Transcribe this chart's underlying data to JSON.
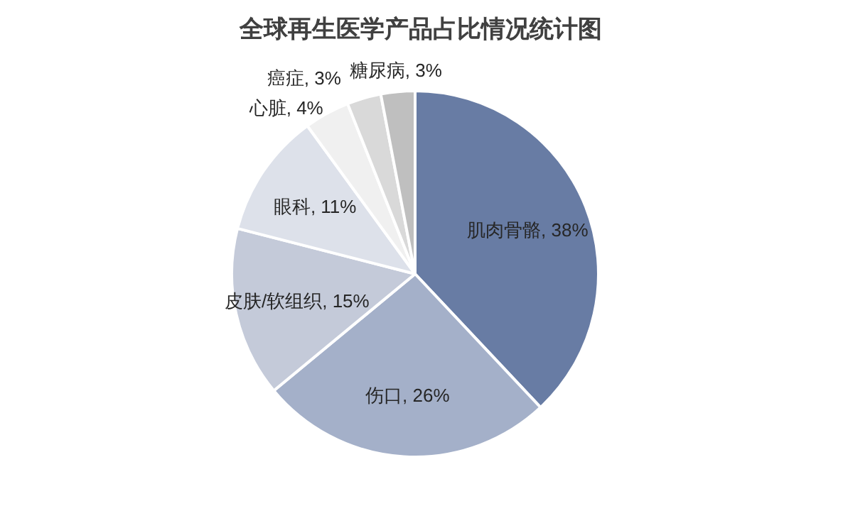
{
  "chart_data": {
    "type": "pie",
    "title": "全球再生医学产品占比情况统计图",
    "categories": [
      "肌肉骨骼",
      "伤口",
      "皮肤/软组织",
      "眼科",
      "心脏",
      "癌症",
      "糖尿病"
    ],
    "values": [
      38,
      26,
      15,
      11,
      4,
      3,
      3
    ],
    "colors": [
      "#687ca4",
      "#a4b0c9",
      "#c4cad9",
      "#dde1ea",
      "#f0f0f0",
      "#d9d9d9",
      "#bfbfbf"
    ],
    "value_labels": [
      ", 38%",
      ", 26%",
      ", 15%",
      ", 11%",
      ", 4%",
      ", 3%",
      ", 3%"
    ],
    "legend": false
  }
}
